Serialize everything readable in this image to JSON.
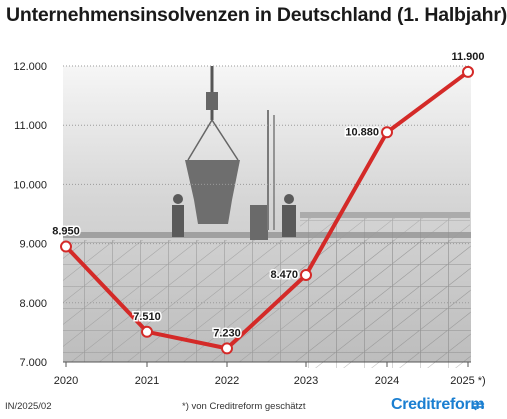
{
  "title": "Unternehmensinsolvenzen in Deutschland (1. Halbjahr)",
  "footer": {
    "code": "IN/2025/02",
    "footnote": "*) von Creditreform geschätzt",
    "brand": "Creditreform"
  },
  "icons": {
    "brand_mark": "creditreform-logo-icon",
    "background": "construction-workers-photo"
  },
  "colors": {
    "line": "#d42a28",
    "point_fill": "#ffffff",
    "title": "#1a1a1a",
    "brand": "#1b7fd1"
  },
  "chart_data": {
    "type": "line",
    "categories": [
      "2020",
      "2021",
      "2022",
      "2023",
      "2024",
      "2025 *)"
    ],
    "values": [
      8950,
      7510,
      7230,
      8470,
      10880,
      11900
    ],
    "data_labels": [
      "8.950",
      "7.510",
      "7.230",
      "8.470",
      "10.880",
      "11.900"
    ],
    "yticks": [
      7000,
      8000,
      9000,
      10000,
      11000,
      12000
    ],
    "ytick_labels": [
      "7.000",
      "8.000",
      "9.000",
      "10.000",
      "11.000",
      "12.000"
    ],
    "ylim": [
      7000,
      12000
    ],
    "grid": true
  }
}
